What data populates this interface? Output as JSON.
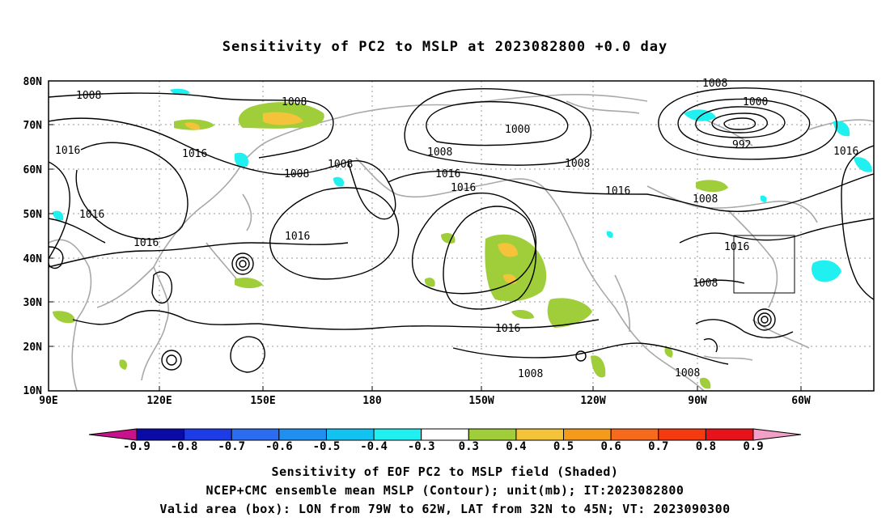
{
  "title": "Sensitivity of PC2 to MSLP at 2023082800 +0.0 day",
  "lat_labels": [
    "80N",
    "70N",
    "60N",
    "50N",
    "40N",
    "30N",
    "20N",
    "10N"
  ],
  "lon_labels": [
    "90E",
    "120E",
    "150E",
    "180",
    "150W",
    "120W",
    "90W",
    "60W"
  ],
  "contour_labels": {
    "c1": "1008",
    "c2": "1008",
    "c3": "1008",
    "c4": "1000",
    "c5": "992",
    "c6": "1016",
    "c7": "1016",
    "c8": "1000",
    "c9": "1008",
    "c10": "1008",
    "c11": "1016",
    "c12": "1016",
    "c13": "1008",
    "c14": "1016",
    "c15": "1016",
    "c16": "1016",
    "c17": "1016",
    "c18": "1008",
    "c19": "1016",
    "c20": "1016",
    "c21": "1008",
    "c22": "1008",
    "c23": "1016",
    "c24": "1008",
    "c25": "1008"
  },
  "colorbar": {
    "labels": [
      "-0.9",
      "-0.8",
      "-0.7",
      "-0.6",
      "-0.5",
      "-0.4",
      "-0.3",
      "0.3",
      "0.4",
      "0.5",
      "0.6",
      "0.7",
      "0.8",
      "0.9"
    ],
    "colors": [
      "#0a0aa6",
      "#1e3ce6",
      "#2b6cf0",
      "#1f8ff0",
      "#12c3f2",
      "#20f0f0",
      "#ffffff",
      "#a0ce3a",
      "#f5c33a",
      "#f59b1c",
      "#f56a1c",
      "#f53a10",
      "#e8121a"
    ],
    "under_color": "#c8118a",
    "over_color": "#f2a0c8"
  },
  "footer": {
    "line1": "Sensitivity of EOF PC2 to MSLP field (Shaded)",
    "line2": "NCEP+CMC ensemble mean MSLP (Contour); unit(mb); IT:2023082800",
    "line3": "Valid area (box): LON from 79W to 62W, LAT from 32N to 45N; VT: 2023090300"
  },
  "valid_box": {
    "lon": [
      "79W",
      "62W"
    ],
    "lat": [
      "32N",
      "45N"
    ]
  }
}
